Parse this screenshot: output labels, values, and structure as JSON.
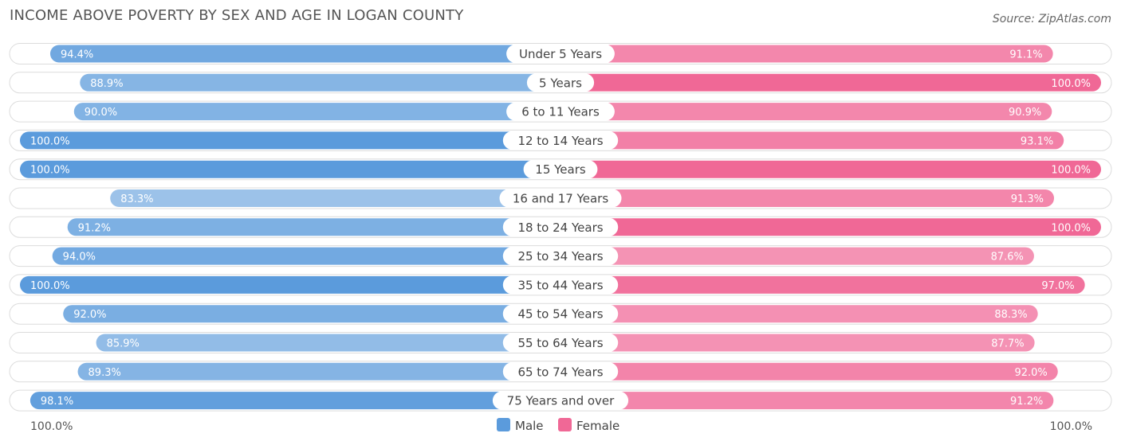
{
  "title": "INCOME ABOVE POVERTY BY SEX AND AGE IN LOGAN COUNTY",
  "source": "Source: ZipAtlas.com",
  "chart_data": {
    "type": "bar",
    "orientation": "horizontal-diverging",
    "categories": [
      "Under 5 Years",
      "5 Years",
      "6 to 11 Years",
      "12 to 14 Years",
      "15 Years",
      "16 and 17 Years",
      "18 to 24 Years",
      "25 to 34 Years",
      "35 to 44 Years",
      "45 to 54 Years",
      "55 to 64 Years",
      "65 to 74 Years",
      "75 Years and over"
    ],
    "series": [
      {
        "name": "Male",
        "values": [
          94.4,
          88.9,
          90.0,
          100.0,
          100.0,
          83.3,
          91.2,
          94.0,
          100.0,
          92.0,
          85.9,
          89.3,
          98.1
        ],
        "labels": [
          "94.4%",
          "88.9%",
          "90.0%",
          "100.0%",
          "100.0%",
          "83.3%",
          "91.2%",
          "94.0%",
          "100.0%",
          "92.0%",
          "85.9%",
          "89.3%",
          "98.1%"
        ]
      },
      {
        "name": "Female",
        "values": [
          91.1,
          100.0,
          90.9,
          93.1,
          100.0,
          91.3,
          100.0,
          87.6,
          97.0,
          88.3,
          87.7,
          92.0,
          91.2
        ],
        "labels": [
          "91.1%",
          "100.0%",
          "90.9%",
          "93.1%",
          "100.0%",
          "91.3%",
          "100.0%",
          "87.6%",
          "97.0%",
          "88.3%",
          "87.7%",
          "92.0%",
          "91.2%"
        ]
      }
    ],
    "axis": {
      "left_label": "100.0%",
      "right_label": "100.0%",
      "max": 100
    },
    "legend": {
      "position": "bottom-center",
      "items": [
        "Male",
        "Female"
      ]
    },
    "colors": {
      "male_strong": "#5b9bdc",
      "male_light": "#a9caeb",
      "female_strong": "#f06896",
      "female_light": "#f7adc7",
      "track": "#f0f0f0"
    }
  }
}
